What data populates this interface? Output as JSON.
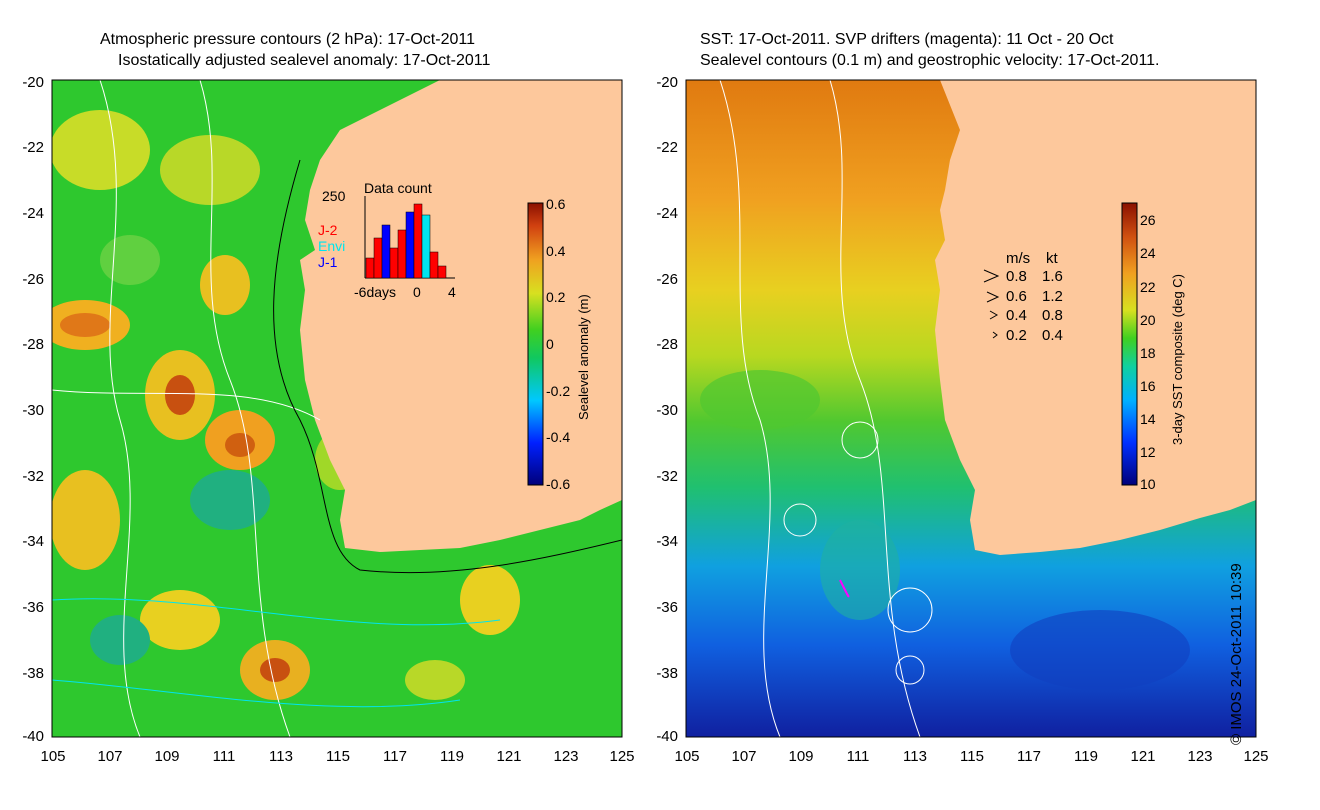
{
  "left_panel": {
    "title_line1": "Atmospheric pressure contours (2 hPa): 17-Oct-2011",
    "title_line2": "Isostatically adjusted sealevel anomaly: 17-Oct-2011",
    "colorbar_label": "Sealevel anomaly (m)",
    "colorbar_ticks": [
      "0.6",
      "0.4",
      "0.2",
      "0",
      "-0.2",
      "-0.4",
      "-0.6"
    ],
    "inset": {
      "title": "Data count",
      "ymax_label": "250",
      "x_labels": [
        "-6days",
        "0",
        "4"
      ],
      "satellites": [
        {
          "name": "J-2",
          "color": "#ff0000"
        },
        {
          "name": "Envi",
          "color": "#00e5ee"
        },
        {
          "name": "J-1",
          "color": "#0000ff"
        }
      ]
    }
  },
  "right_panel": {
    "title_line1": "SST: 17-Oct-2011. SVP drifters (magenta): 11 Oct - 20 Oct",
    "title_line2": "Sealevel contours (0.1 m) and geostrophic velocity: 17-Oct-2011.",
    "colorbar_label": "3-day SST composite (deg C)",
    "colorbar_ticks": [
      "26",
      "24",
      "22",
      "20",
      "18",
      "16",
      "14",
      "12",
      "10"
    ],
    "velocity_legend": {
      "header_ms": "m/s",
      "header_kt": "kt",
      "rows": [
        {
          "ms": "0.8",
          "kt": "1.6"
        },
        {
          "ms": "0.6",
          "kt": "1.2"
        },
        {
          "ms": "0.4",
          "kt": "0.8"
        },
        {
          "ms": "0.2",
          "kt": "0.4"
        }
      ]
    }
  },
  "axes": {
    "y_labels": [
      "-20",
      "-22",
      "-24",
      "-26",
      "-28",
      "-30",
      "-32",
      "-34",
      "-36",
      "-38",
      "-40"
    ],
    "x_labels": [
      "105",
      "107",
      "109",
      "111",
      "113",
      "115",
      "117",
      "119",
      "121",
      "123",
      "125"
    ]
  },
  "copyright": "© IMOS 24-Oct-2011 10:39",
  "colors": {
    "land": "#fdc89c",
    "ssh_mid": "#2ec82e",
    "sst_warm": "#e07a10",
    "sst_cool": "#1060e0"
  }
}
